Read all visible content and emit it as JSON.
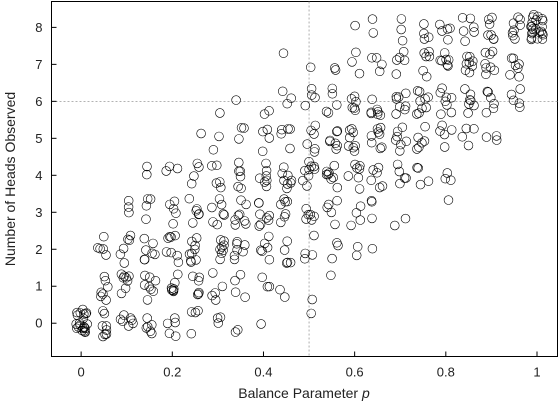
{
  "chart_data": {
    "type": "scatter",
    "xlabel": "Balance Parameter",
    "xlabel_var": "p",
    "ylabel": "Number of Heads Observed",
    "xlim": [
      -0.065,
      1.045
    ],
    "ylim": [
      -0.9,
      8.7
    ],
    "xticks": [
      0,
      0.2,
      0.4,
      0.6,
      0.8,
      1
    ],
    "xtick_labels": [
      "0",
      "0.2",
      "0.4",
      "0.6",
      "0.8",
      "1"
    ],
    "yticks": [
      0,
      1,
      2,
      3,
      4,
      5,
      6,
      7,
      8
    ],
    "ytick_labels": [
      "0",
      "1",
      "2",
      "3",
      "4",
      "5",
      "6",
      "7",
      "8"
    ],
    "reference_lines": {
      "x": 0.5,
      "y": 6
    },
    "grid": false,
    "marker": "hollow-circle",
    "jitter": "points are jittered around integer counts for visibility",
    "series": [
      {
        "points": [
          {
            "p": 0.0,
            "heads": [
              0
            ]
          },
          {
            "p": 0.05,
            "heads": [
              0,
              1,
              2
            ]
          },
          {
            "p": 0.1,
            "heads": [
              0,
              1,
              2,
              3
            ]
          },
          {
            "p": 0.15,
            "heads": [
              0,
              1,
              2,
              3,
              4
            ]
          },
          {
            "p": 0.2,
            "heads": [
              0,
              1,
              2,
              3,
              4
            ]
          },
          {
            "p": 0.25,
            "heads": [
              0,
              1,
              2,
              3,
              4,
              5
            ]
          },
          {
            "p": 0.3,
            "heads": [
              0,
              1,
              2,
              3,
              4,
              5,
              6
            ]
          },
          {
            "p": 0.35,
            "heads": [
              0,
              1,
              2,
              3,
              4,
              5,
              6
            ]
          },
          {
            "p": 0.4,
            "heads": [
              0,
              1,
              2,
              3,
              4,
              5,
              6
            ]
          },
          {
            "p": 0.45,
            "heads": [
              1,
              2,
              3,
              4,
              5,
              6,
              7
            ]
          },
          {
            "p": 0.5,
            "heads": [
              0,
              1,
              2,
              3,
              4,
              5,
              6,
              7
            ]
          },
          {
            "p": 0.55,
            "heads": [
              1,
              2,
              3,
              4,
              5,
              6,
              7
            ]
          },
          {
            "p": 0.6,
            "heads": [
              2,
              3,
              4,
              5,
              6,
              7,
              8
            ]
          },
          {
            "p": 0.65,
            "heads": [
              2,
              3,
              4,
              5,
              6,
              7,
              8
            ]
          },
          {
            "p": 0.7,
            "heads": [
              3,
              4,
              5,
              6,
              7,
              8
            ]
          },
          {
            "p": 0.75,
            "heads": [
              4,
              5,
              6,
              7,
              8
            ]
          },
          {
            "p": 0.8,
            "heads": [
              3,
              4,
              5,
              6,
              7,
              8
            ]
          },
          {
            "p": 0.85,
            "heads": [
              5,
              6,
              7,
              8
            ]
          },
          {
            "p": 0.9,
            "heads": [
              5,
              6,
              7,
              8
            ]
          },
          {
            "p": 0.95,
            "heads": [
              6,
              7,
              8
            ]
          },
          {
            "p": 1.0,
            "heads": [
              8
            ]
          }
        ]
      }
    ]
  }
}
